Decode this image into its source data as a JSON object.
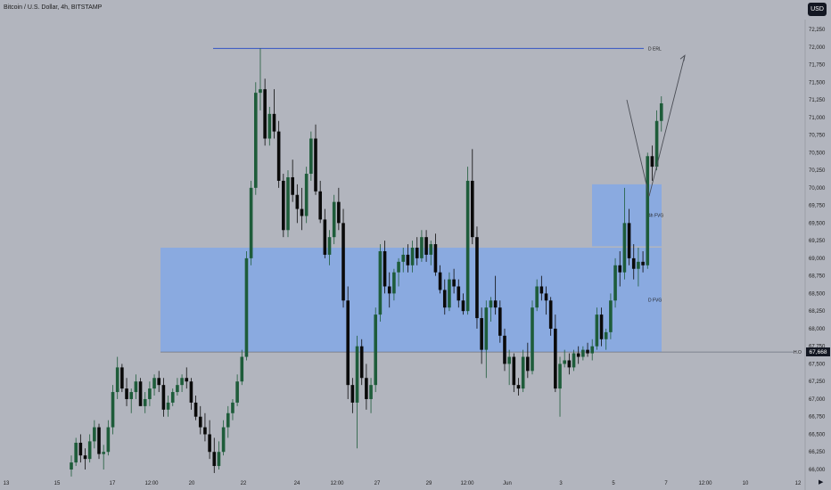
{
  "header": {
    "title": "Bitcoin / U.S. Dollar, 4h, BITSTAMP"
  },
  "toolbar": {
    "currency": "USD",
    "settings_icon": "triangle-right-icon"
  },
  "price_tag": {
    "value": "67,668"
  },
  "chart_data": {
    "type": "candlestick",
    "ylim": [
      66000,
      72500
    ],
    "y_ticks": [
      "66,000",
      "66,250",
      "66,500",
      "66,750",
      "67,000",
      "67,250",
      "67,500",
      "67,750",
      "68,000",
      "68,250",
      "68,500",
      "68,750",
      "69,000",
      "69,250",
      "69,500",
      "69,750",
      "70,000",
      "70,250",
      "70,500",
      "70,750",
      "71,000",
      "71,250",
      "71,500",
      "71,750",
      "72,000",
      "72,250"
    ],
    "x_ticks": [
      "13",
      "15",
      "17",
      "12:00",
      "20",
      "22",
      "24",
      "12:00",
      "27",
      "29",
      "12:00",
      "Jun",
      "3",
      "5",
      "7",
      "12:00",
      "10",
      "12"
    ],
    "colors": {
      "up": "#1e5c3a",
      "down": "#0a0a0a",
      "zone": "#87a9e3",
      "line": "#3355c4",
      "arrow": "#4a4d55",
      "background": "#b2b5be"
    },
    "annotations": [
      {
        "type": "level",
        "label": "D ERL",
        "price": 71980
      },
      {
        "type": "level",
        "label": "H.O",
        "price": 67668
      },
      {
        "type": "zone",
        "label": "4h FVG",
        "top": 70050,
        "bottom": 69170
      },
      {
        "type": "zone",
        "label": "D FVG",
        "top": 69150,
        "bottom": 67668
      },
      {
        "type": "projection",
        "points": [
          [
            71250,
            0
          ],
          [
            69880,
            1
          ],
          [
            71880,
            2
          ]
        ]
      }
    ],
    "ohlc": [
      [
        66000,
        66200,
        65900,
        66100
      ],
      [
        66100,
        66450,
        66050,
        66380
      ],
      [
        66380,
        66500,
        66100,
        66200
      ],
      [
        66200,
        66300,
        66000,
        66150
      ],
      [
        66150,
        66500,
        66100,
        66400
      ],
      [
        66400,
        66700,
        66300,
        66600
      ],
      [
        66600,
        66650,
        66150,
        66220
      ],
      [
        66220,
        66350,
        66000,
        66250
      ],
      [
        66250,
        66700,
        66200,
        66600
      ],
      [
        66600,
        67200,
        66500,
        67100
      ],
      [
        67100,
        67600,
        67000,
        67450
      ],
      [
        67450,
        67500,
        67100,
        67150
      ],
      [
        67150,
        67300,
        66900,
        67000
      ],
      [
        67000,
        67150,
        66800,
        67100
      ],
      [
        67100,
        67350,
        67000,
        67250
      ],
      [
        67250,
        67300,
        66950,
        66900
      ],
      [
        66900,
        67100,
        66800,
        67000
      ],
      [
        67000,
        67250,
        66900,
        67150
      ],
      [
        67150,
        67350,
        67050,
        67300
      ],
      [
        67300,
        67400,
        67100,
        67200
      ],
      [
        67200,
        67300,
        66750,
        66850
      ],
      [
        66850,
        67050,
        66750,
        66950
      ],
      [
        66950,
        67150,
        66900,
        67100
      ],
      [
        67100,
        67300,
        67050,
        67200
      ],
      [
        67200,
        67350,
        67100,
        67300
      ],
      [
        67300,
        67450,
        67150,
        67250
      ],
      [
        67250,
        67300,
        66850,
        66950
      ],
      [
        66950,
        67050,
        66700,
        66750
      ],
      [
        66750,
        66900,
        66500,
        66600
      ],
      [
        66600,
        66800,
        66400,
        66500
      ],
      [
        66500,
        66700,
        66150,
        66250
      ],
      [
        66250,
        66450,
        65950,
        66050
      ],
      [
        66050,
        66400,
        66000,
        66250
      ],
      [
        66250,
        66700,
        66200,
        66600
      ],
      [
        66600,
        66900,
        66450,
        66800
      ],
      [
        66800,
        67000,
        66700,
        66950
      ],
      [
        66950,
        67350,
        66900,
        67250
      ],
      [
        67250,
        67700,
        67200,
        67600
      ],
      [
        67600,
        69100,
        67550,
        69000
      ],
      [
        69000,
        70100,
        68900,
        70000
      ],
      [
        70000,
        71500,
        69900,
        71350
      ],
      [
        71350,
        71980,
        71100,
        71400
      ],
      [
        71400,
        71550,
        70600,
        70700
      ],
      [
        70700,
        71150,
        70600,
        71050
      ],
      [
        71050,
        71400,
        70700,
        70800
      ],
      [
        70800,
        70950,
        70000,
        70100
      ],
      [
        70100,
        70200,
        69300,
        69400
      ],
      [
        69400,
        70250,
        69300,
        70150
      ],
      [
        70150,
        70400,
        69800,
        69900
      ],
      [
        69900,
        70050,
        69500,
        69700
      ],
      [
        69700,
        70000,
        69400,
        69600
      ],
      [
        69600,
        70300,
        69500,
        70200
      ],
      [
        70200,
        70800,
        70100,
        70700
      ],
      [
        70700,
        70900,
        69900,
        69950
      ],
      [
        69950,
        70100,
        69500,
        69550
      ],
      [
        69550,
        69700,
        69000,
        69050
      ],
      [
        69050,
        69400,
        68900,
        69300
      ],
      [
        69300,
        69900,
        69200,
        69800
      ],
      [
        69800,
        70000,
        69400,
        69500
      ],
      [
        69500,
        69700,
        68300,
        68400
      ],
      [
        68400,
        68600,
        67000,
        67200
      ],
      [
        67200,
        67300,
        66800,
        66950
      ],
      [
        66950,
        67900,
        66300,
        67750
      ],
      [
        67750,
        67850,
        67200,
        67300
      ],
      [
        67300,
        67500,
        66850,
        67000
      ],
      [
        67000,
        67300,
        66800,
        67200
      ],
      [
        67200,
        68300,
        67100,
        68200
      ],
      [
        68200,
        69200,
        68100,
        69100
      ],
      [
        69100,
        69250,
        68500,
        68600
      ],
      [
        68600,
        68800,
        68300,
        68500
      ],
      [
        68500,
        68850,
        68400,
        68800
      ],
      [
        68800,
        69000,
        68600,
        68950
      ],
      [
        68950,
        69150,
        68800,
        69050
      ],
      [
        69050,
        69200,
        68800,
        68900
      ],
      [
        68900,
        69250,
        68800,
        69150
      ],
      [
        69150,
        69300,
        68900,
        69000
      ],
      [
        69000,
        69400,
        68950,
        69300
      ],
      [
        69300,
        69400,
        68950,
        69050
      ],
      [
        69050,
        69250,
        68900,
        69200
      ],
      [
        69200,
        69350,
        68750,
        68800
      ],
      [
        68800,
        68900,
        68500,
        68550
      ],
      [
        68550,
        68700,
        68200,
        68300
      ],
      [
        68300,
        68800,
        68250,
        68700
      ],
      [
        68700,
        68850,
        68500,
        68600
      ],
      [
        68600,
        68700,
        68300,
        68400
      ],
      [
        68400,
        68500,
        68200,
        68250
      ],
      [
        68250,
        70300,
        68200,
        70100
      ],
      [
        70100,
        70550,
        69200,
        69300
      ],
      [
        69300,
        69450,
        68000,
        68150
      ],
      [
        68150,
        68300,
        67500,
        67700
      ],
      [
        67700,
        68400,
        67300,
        68300
      ],
      [
        68300,
        68450,
        68100,
        68400
      ],
      [
        68400,
        68750,
        68200,
        68300
      ],
      [
        68300,
        68400,
        67800,
        67900
      ],
      [
        67900,
        68000,
        67400,
        67500
      ],
      [
        67500,
        67700,
        67200,
        67600
      ],
      [
        67600,
        67650,
        67100,
        67200
      ],
      [
        67200,
        67300,
        67050,
        67150
      ],
      [
        67150,
        67700,
        67100,
        67600
      ],
      [
        67600,
        67800,
        67300,
        67400
      ],
      [
        67400,
        68400,
        67350,
        68300
      ],
      [
        68300,
        68700,
        68250,
        68600
      ],
      [
        68600,
        68750,
        68400,
        68500
      ],
      [
        68500,
        68600,
        68200,
        68400
      ],
      [
        68400,
        68450,
        67900,
        68000
      ],
      [
        68000,
        68200,
        67100,
        67150
      ],
      [
        67150,
        67600,
        66750,
        67500
      ],
      [
        67500,
        67700,
        67450,
        67550
      ],
      [
        67550,
        67650,
        67350,
        67450
      ],
      [
        67450,
        67700,
        67400,
        67650
      ],
      [
        67650,
        67750,
        67500,
        67600
      ],
      [
        67600,
        67750,
        67550,
        67700
      ],
      [
        67700,
        67800,
        67600,
        67650
      ],
      [
        67650,
        67850,
        67550,
        67750
      ],
      [
        67750,
        68300,
        67700,
        68200
      ],
      [
        68200,
        68300,
        67750,
        67850
      ],
      [
        67850,
        68000,
        67700,
        67950
      ],
      [
        67950,
        68500,
        67850,
        68400
      ],
      [
        68400,
        69000,
        68300,
        68900
      ],
      [
        68900,
        69100,
        68600,
        68800
      ],
      [
        68800,
        70000,
        68700,
        69500
      ],
      [
        69500,
        69700,
        68900,
        69000
      ],
      [
        69000,
        69200,
        68700,
        68850
      ],
      [
        68850,
        69150,
        68600,
        68950
      ],
      [
        68950,
        69100,
        68800,
        68900
      ],
      [
        68900,
        70500,
        68850,
        70450
      ],
      [
        70450,
        70600,
        70100,
        70300
      ],
      [
        70300,
        71100,
        70250,
        70950
      ],
      [
        70950,
        71300,
        70800,
        71200
      ]
    ]
  }
}
